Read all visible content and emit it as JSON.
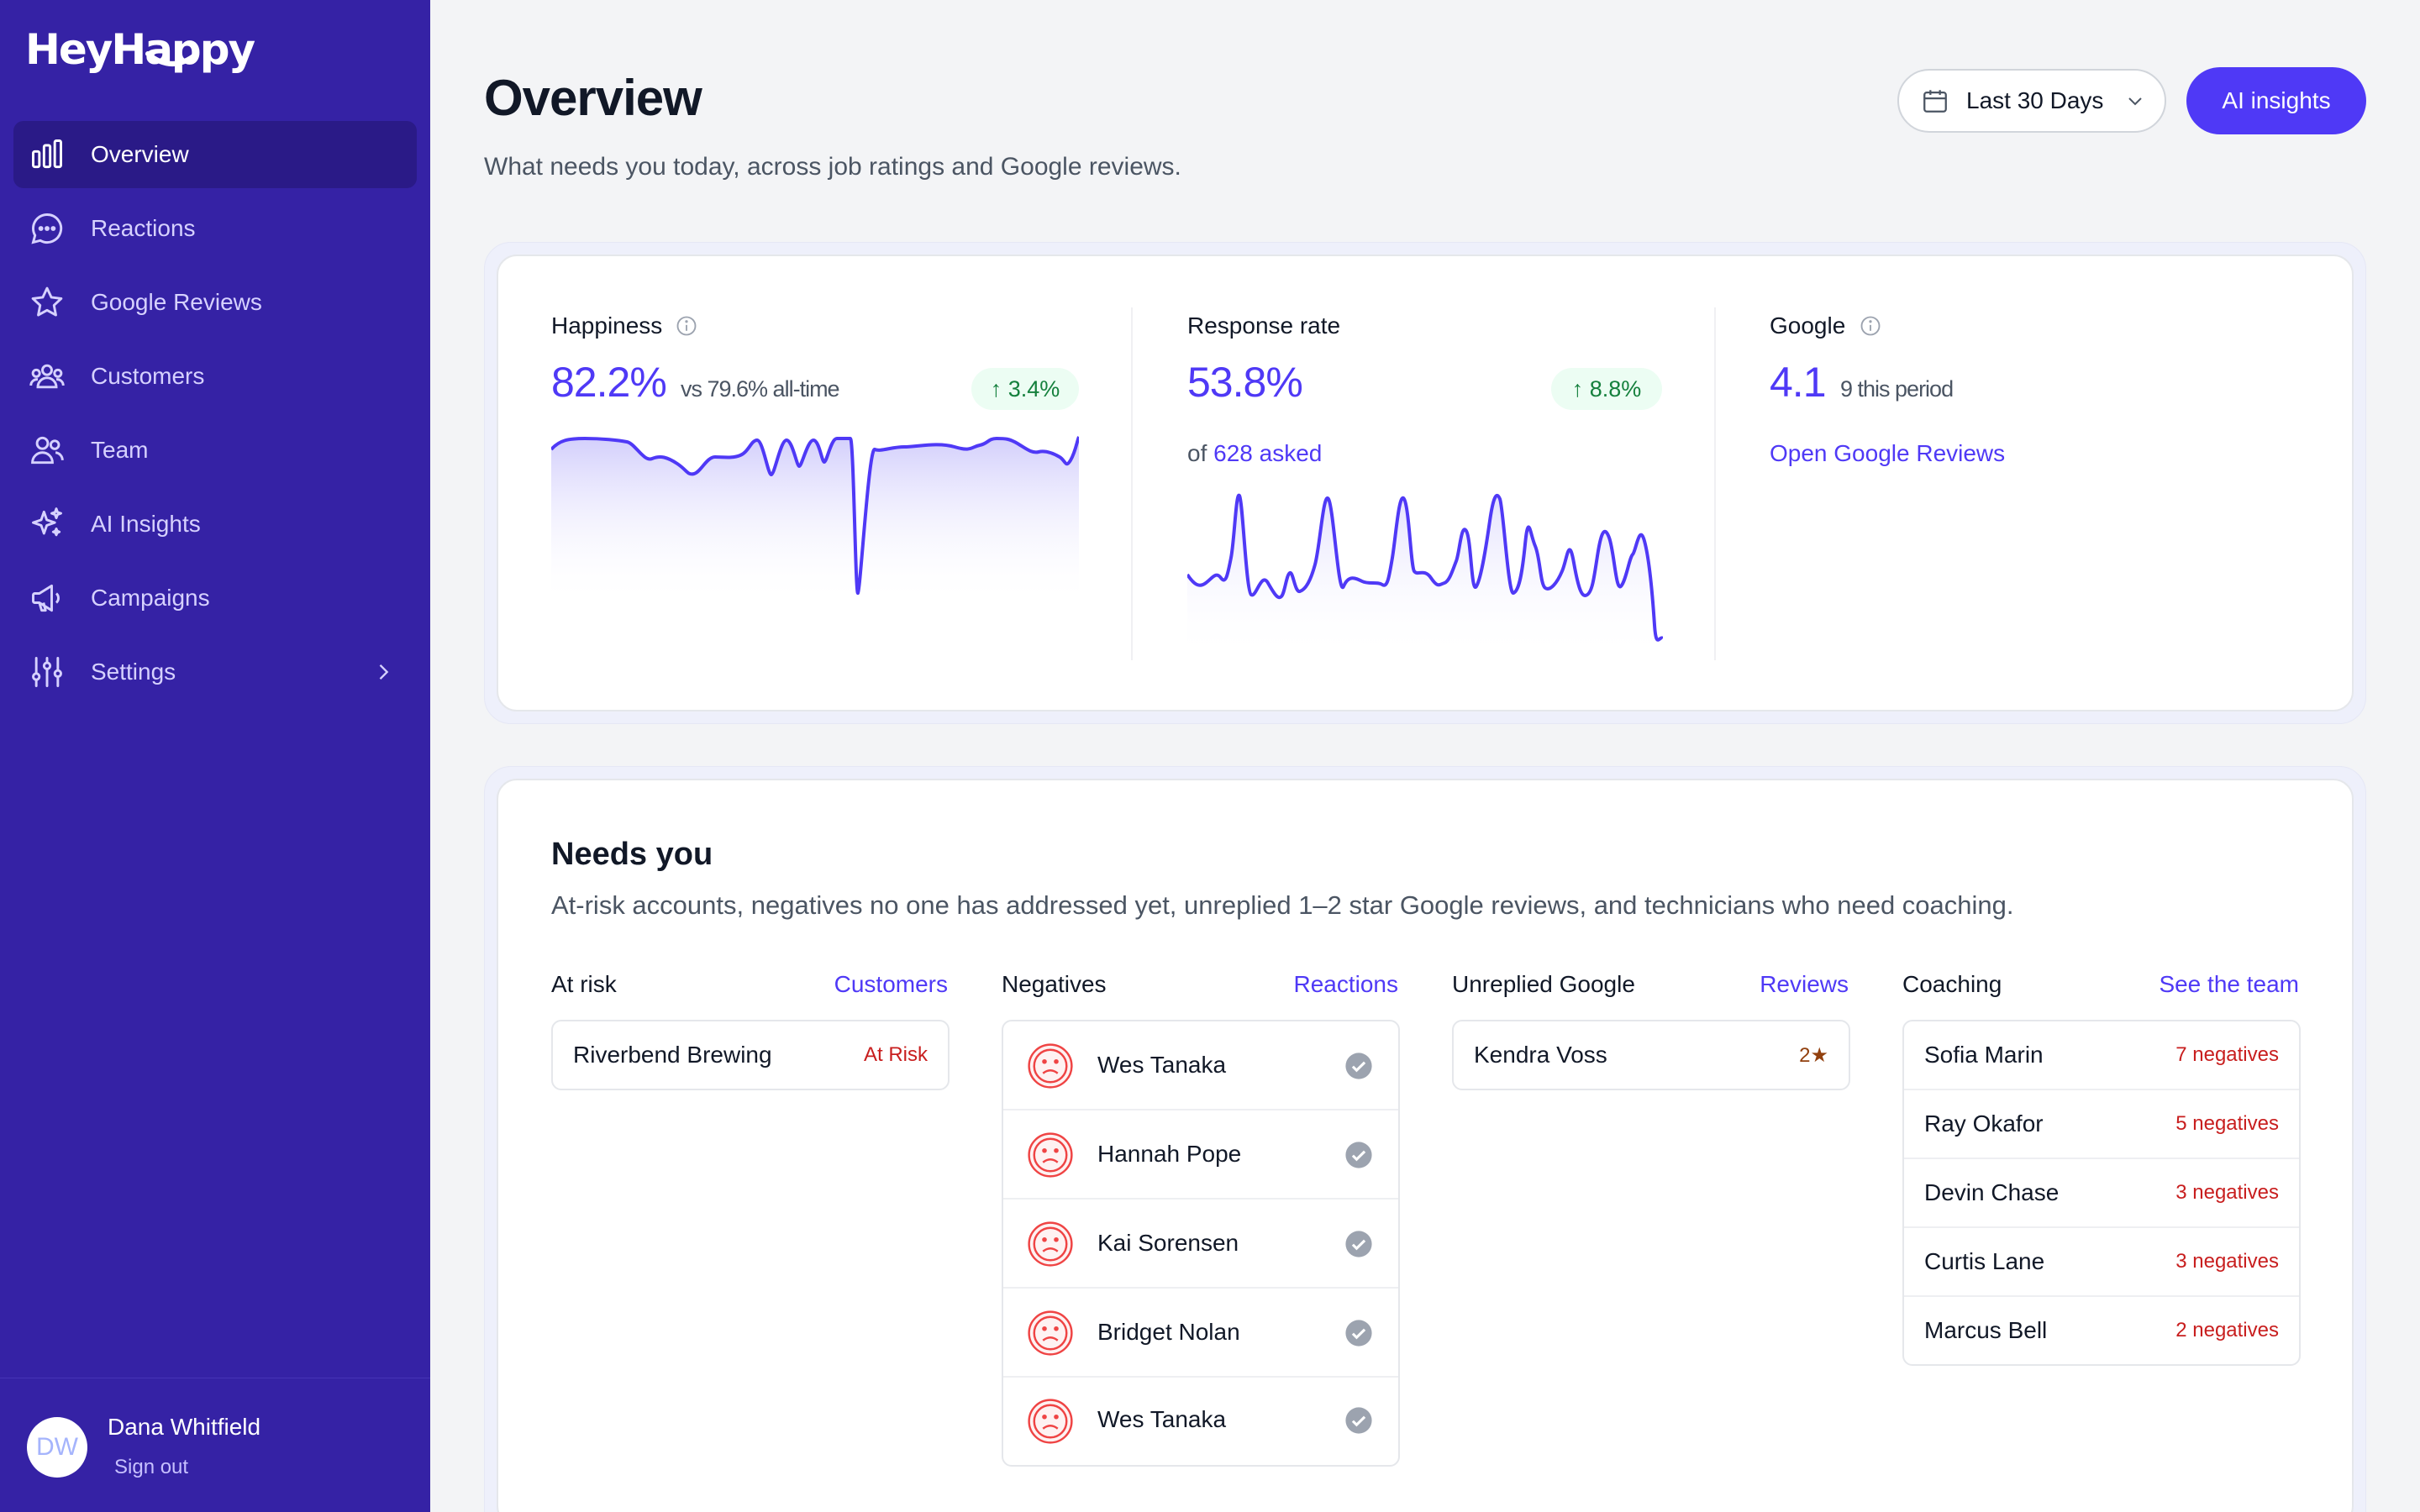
{
  "app": {
    "logo": "HeyHappy"
  },
  "sidebar": {
    "items": [
      {
        "label": "Overview",
        "icon": "bar-chart-icon"
      },
      {
        "label": "Reactions",
        "icon": "chat-bubble-icon"
      },
      {
        "label": "Google Reviews",
        "icon": "star-icon"
      },
      {
        "label": "Customers",
        "icon": "users-group-icon"
      },
      {
        "label": "Team",
        "icon": "team-icon"
      },
      {
        "label": "AI Insights",
        "icon": "sparkles-icon"
      },
      {
        "label": "Campaigns",
        "icon": "megaphone-icon"
      },
      {
        "label": "Settings",
        "icon": "sliders-icon"
      }
    ],
    "user": {
      "initials": "DW",
      "name": "Dana Whitfield",
      "signout": "Sign out"
    }
  },
  "header": {
    "title": "Overview",
    "subtitle": "What needs you today, across job ratings and Google reviews.",
    "date_range": "Last 30 Days",
    "ai_button": "AI insights"
  },
  "stats": {
    "happiness": {
      "label": "Happiness",
      "value": "82.2%",
      "compare": "vs 79.6% all-time",
      "delta": "↑ 3.4%"
    },
    "response": {
      "label": "Response rate",
      "value": "53.8%",
      "delta": "↑ 8.8%",
      "of_prefix": "of",
      "asked": "628 asked"
    },
    "google": {
      "label": "Google",
      "value": "4.1",
      "period": "9 this period",
      "link": "Open Google Reviews"
    }
  },
  "needs": {
    "title": "Needs you",
    "subtitle": "At-risk accounts, negatives no one has addressed yet, unreplied 1–2 star Google reviews, and technicians who need coaching.",
    "at_risk": {
      "heading": "At risk",
      "link": "Customers",
      "rows": [
        {
          "name": "Riverbend Brewing",
          "tag": "At Risk"
        }
      ]
    },
    "negatives": {
      "heading": "Negatives",
      "link": "Reactions",
      "rows": [
        {
          "name": "Wes Tanaka"
        },
        {
          "name": "Hannah Pope"
        },
        {
          "name": "Kai Sorensen"
        },
        {
          "name": "Bridget Nolan"
        },
        {
          "name": "Wes Tanaka"
        }
      ]
    },
    "unreplied": {
      "heading": "Unreplied Google",
      "link": "Reviews",
      "rows": [
        {
          "name": "Kendra Voss",
          "stars": "2★"
        }
      ]
    },
    "coaching": {
      "heading": "Coaching",
      "link": "See the team",
      "rows": [
        {
          "name": "Sofia Marin",
          "tag": "7 negatives"
        },
        {
          "name": "Ray Okafor",
          "tag": "5 negatives"
        },
        {
          "name": "Devin Chase",
          "tag": "3 negatives"
        },
        {
          "name": "Curtis Lane",
          "tag": "3 negatives"
        },
        {
          "name": "Marcus Bell",
          "tag": "2 negatives"
        }
      ]
    }
  },
  "colors": {
    "sidebar": "#3522a5",
    "accent": "#4f39f6",
    "danger": "#c81e1e",
    "positive": "#15803d"
  }
}
